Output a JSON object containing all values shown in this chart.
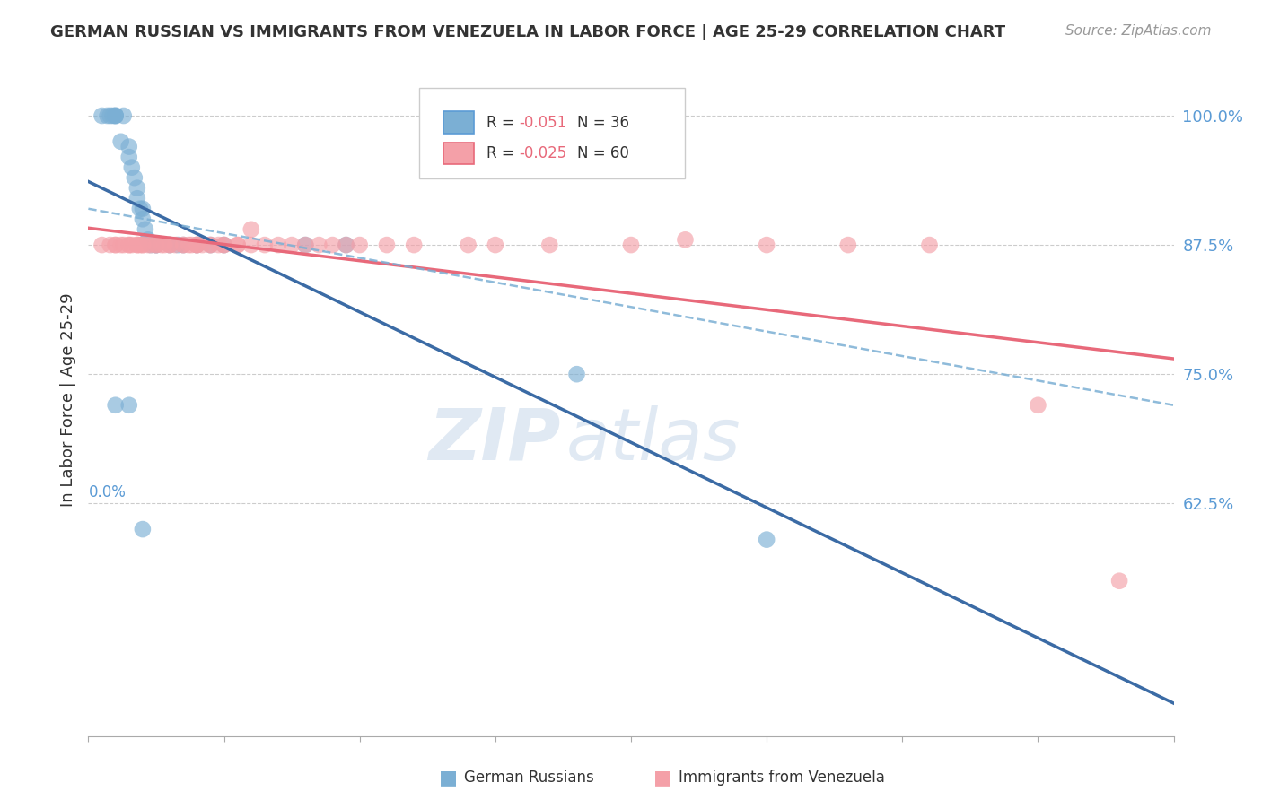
{
  "title": "GERMAN RUSSIAN VS IMMIGRANTS FROM VENEZUELA IN LABOR FORCE | AGE 25-29 CORRELATION CHART",
  "source": "Source: ZipAtlas.com",
  "ylabel": "In Labor Force | Age 25-29",
  "xlim": [
    0.0,
    0.4
  ],
  "ylim": [
    0.4,
    1.05
  ],
  "legend_r1": "-0.051",
  "legend_n1": "36",
  "legend_r2": "-0.025",
  "legend_n2": "60",
  "blue_color": "#7BAFD4",
  "pink_color": "#F4A0A8",
  "blue_line_color": "#3B6BA5",
  "pink_line_color": "#E8697A",
  "dashed_line_color": "#7BAFD4",
  "background_color": "#FFFFFF",
  "gr_x": [
    0.005,
    0.007,
    0.008,
    0.009,
    0.01,
    0.01,
    0.01,
    0.012,
    0.013,
    0.015,
    0.015,
    0.016,
    0.017,
    0.018,
    0.018,
    0.019,
    0.02,
    0.02,
    0.021,
    0.022,
    0.023,
    0.025,
    0.025,
    0.03,
    0.033,
    0.035,
    0.04,
    0.045,
    0.05,
    0.08,
    0.095,
    0.01,
    0.015,
    0.02,
    0.18,
    0.25
  ],
  "gr_y": [
    1.0,
    1.0,
    1.0,
    1.0,
    1.0,
    1.0,
    1.0,
    0.975,
    1.0,
    0.97,
    0.96,
    0.95,
    0.94,
    0.93,
    0.92,
    0.91,
    0.91,
    0.9,
    0.89,
    0.88,
    0.875,
    0.875,
    0.875,
    0.875,
    0.875,
    0.875,
    0.875,
    0.875,
    0.875,
    0.875,
    0.875,
    0.72,
    0.72,
    0.6,
    0.75,
    0.59
  ],
  "vz_x": [
    0.005,
    0.008,
    0.01,
    0.01,
    0.012,
    0.013,
    0.015,
    0.015,
    0.016,
    0.018,
    0.018,
    0.019,
    0.02,
    0.02,
    0.022,
    0.023,
    0.025,
    0.025,
    0.027,
    0.028,
    0.03,
    0.03,
    0.032,
    0.035,
    0.035,
    0.037,
    0.038,
    0.04,
    0.04,
    0.04,
    0.042,
    0.045,
    0.045,
    0.048,
    0.05,
    0.05,
    0.055,
    0.055,
    0.06,
    0.06,
    0.065,
    0.07,
    0.075,
    0.08,
    0.085,
    0.09,
    0.095,
    0.1,
    0.11,
    0.12,
    0.14,
    0.15,
    0.17,
    0.2,
    0.22,
    0.25,
    0.28,
    0.31,
    0.35,
    0.38
  ],
  "vz_y": [
    0.875,
    0.875,
    0.875,
    0.875,
    0.875,
    0.875,
    0.875,
    0.875,
    0.875,
    0.875,
    0.875,
    0.875,
    0.875,
    0.875,
    0.875,
    0.875,
    0.875,
    0.875,
    0.875,
    0.875,
    0.875,
    0.875,
    0.875,
    0.875,
    0.875,
    0.875,
    0.875,
    0.875,
    0.875,
    0.875,
    0.875,
    0.875,
    0.875,
    0.875,
    0.875,
    0.875,
    0.875,
    0.875,
    0.875,
    0.89,
    0.875,
    0.875,
    0.875,
    0.875,
    0.875,
    0.875,
    0.875,
    0.875,
    0.875,
    0.875,
    0.875,
    0.875,
    0.875,
    0.875,
    0.88,
    0.875,
    0.875,
    0.875,
    0.72,
    0.55
  ],
  "ytick_vals": [
    0.625,
    0.75,
    0.875,
    1.0
  ],
  "ytick_labels": [
    "62.5%",
    "75.0%",
    "87.5%",
    "100.0%"
  ]
}
